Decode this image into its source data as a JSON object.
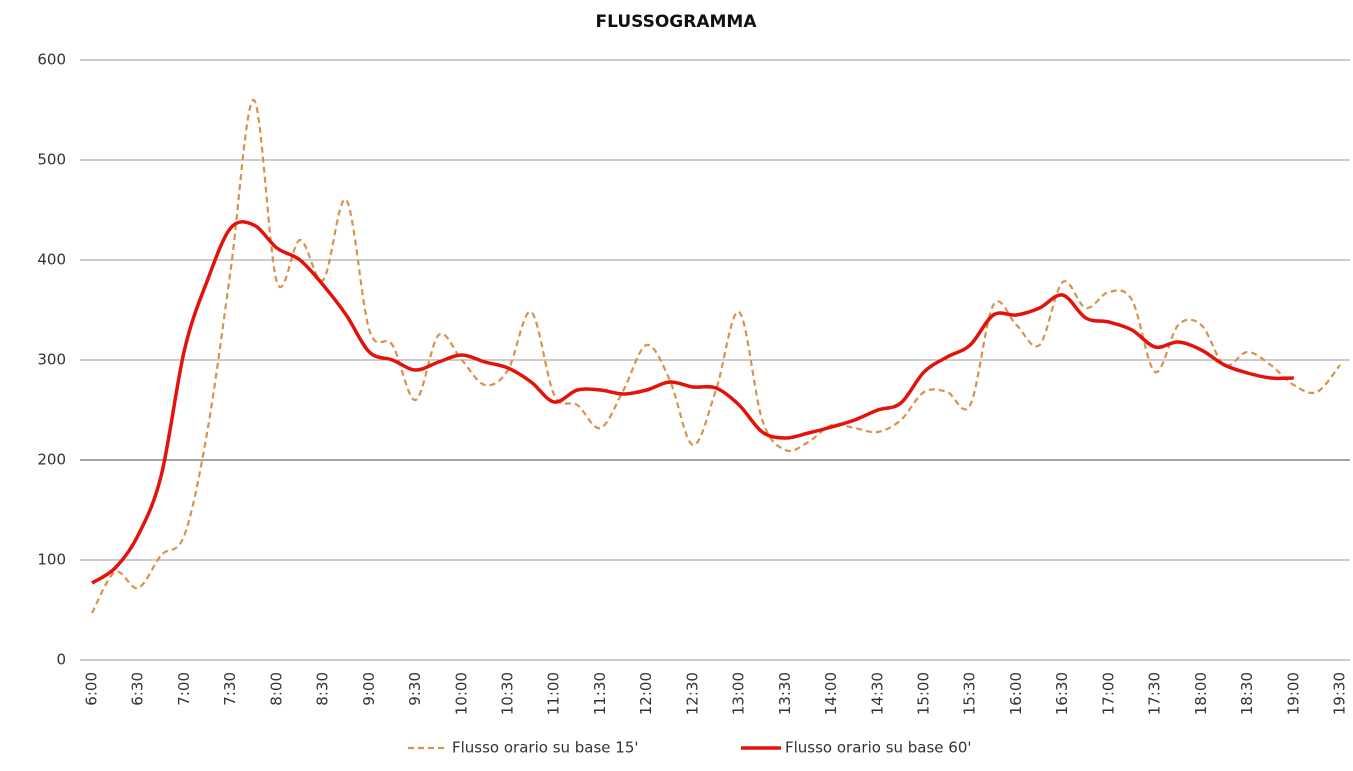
{
  "chart_data": {
    "type": "line",
    "title": "FLUSSOGRAMMA",
    "categories": [
      "6:00",
      null,
      "6:30",
      null,
      "7:00",
      null,
      "7:30",
      null,
      "8:00",
      null,
      "8:30",
      null,
      "9:00",
      null,
      "9:30",
      null,
      "10:00",
      null,
      "10:30",
      null,
      "11:00",
      null,
      "11:30",
      null,
      "12:00",
      null,
      "12:30",
      null,
      "13:00",
      null,
      "13:30",
      null,
      "14:00",
      null,
      "14:30",
      null,
      "15:00",
      null,
      "15:30",
      null,
      "16:00",
      null,
      "16:30",
      null,
      "17:00",
      null,
      "17:30",
      null,
      "18:00",
      null,
      "18:30",
      null,
      "19:00",
      null,
      "19:30"
    ],
    "series": [
      {
        "name": "Flusso orario su base 15'",
        "color": "#d9924a",
        "dashed": true,
        "values": [
          47,
          88,
          72,
          105,
          125,
          230,
          390,
          560,
          378,
          420,
          380,
          460,
          330,
          315,
          260,
          325,
          300,
          275,
          290,
          348,
          265,
          255,
          232,
          270,
          315,
          280,
          215,
          270,
          348,
          240,
          210,
          218,
          235,
          232,
          228,
          240,
          268,
          268,
          255,
          355,
          335,
          315,
          378,
          352,
          368,
          360,
          288,
          335,
          335,
          295,
          308,
          295,
          275,
          268,
          295
        ]
      },
      {
        "name": "Flusso orario su base 60'",
        "color": "#e3120b",
        "dashed": false,
        "values": [
          77,
          92,
          125,
          185,
          310,
          380,
          432,
          435,
          412,
          400,
          375,
          345,
          308,
          300,
          290,
          298,
          305,
          298,
          292,
          278,
          258,
          270,
          270,
          266,
          270,
          278,
          273,
          272,
          255,
          228,
          222,
          227,
          233,
          240,
          250,
          257,
          288,
          303,
          315,
          345,
          345,
          352,
          365,
          342,
          338,
          330,
          313,
          318,
          310,
          295,
          287,
          282,
          282,
          null,
          null
        ]
      }
    ],
    "ylim": [
      0,
      600
    ],
    "yticks": [
      0,
      100,
      200,
      300,
      400,
      500,
      600
    ],
    "grid": true,
    "legend": "bottom"
  }
}
